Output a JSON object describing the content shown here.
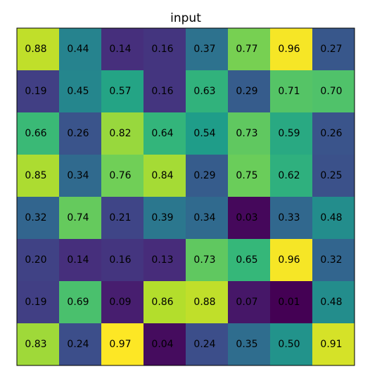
{
  "chart_data": {
    "type": "heatmap",
    "title": "input",
    "colormap": "viridis",
    "values": [
      [
        0.88,
        0.44,
        0.14,
        0.16,
        0.37,
        0.77,
        0.96,
        0.27
      ],
      [
        0.19,
        0.45,
        0.57,
        0.16,
        0.63,
        0.29,
        0.71,
        0.7
      ],
      [
        0.66,
        0.26,
        0.82,
        0.64,
        0.54,
        0.73,
        0.59,
        0.26
      ],
      [
        0.85,
        0.34,
        0.76,
        0.84,
        0.29,
        0.75,
        0.62,
        0.25
      ],
      [
        0.32,
        0.74,
        0.21,
        0.39,
        0.34,
        0.03,
        0.33,
        0.48
      ],
      [
        0.2,
        0.14,
        0.16,
        0.13,
        0.73,
        0.65,
        0.96,
        0.32
      ],
      [
        0.19,
        0.69,
        0.09,
        0.86,
        0.88,
        0.07,
        0.01,
        0.48
      ],
      [
        0.83,
        0.24,
        0.97,
        0.04,
        0.24,
        0.35,
        0.5,
        0.91
      ]
    ],
    "value_labels": [
      [
        "0.88",
        "0.44",
        "0.14",
        "0.16",
        "0.37",
        "0.77",
        "0.96",
        "0.27"
      ],
      [
        "0.19",
        "0.45",
        "0.57",
        "0.16",
        "0.63",
        "0.29",
        "0.71",
        "0.70"
      ],
      [
        "0.66",
        "0.26",
        "0.82",
        "0.64",
        "0.54",
        "0.73",
        "0.59",
        "0.26"
      ],
      [
        "0.85",
        "0.34",
        "0.76",
        "0.84",
        "0.29",
        "0.75",
        "0.62",
        "0.25"
      ],
      [
        "0.32",
        "0.74",
        "0.21",
        "0.39",
        "0.34",
        "0.03",
        "0.33",
        "0.48"
      ],
      [
        "0.20",
        "0.14",
        "0.16",
        "0.13",
        "0.73",
        "0.65",
        "0.96",
        "0.32"
      ],
      [
        "0.19",
        "0.69",
        "0.09",
        "0.86",
        "0.88",
        "0.07",
        "0.01",
        "0.48"
      ],
      [
        "0.83",
        "0.24",
        "0.97",
        "0.04",
        "0.24",
        "0.35",
        "0.50",
        "0.91"
      ]
    ]
  }
}
